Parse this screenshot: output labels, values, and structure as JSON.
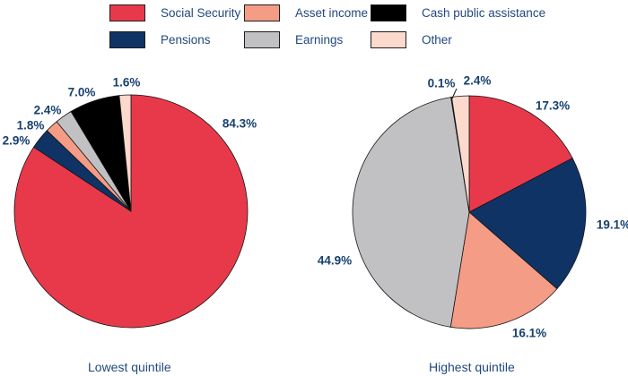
{
  "legend": {
    "items": [
      {
        "label": "Social Security",
        "color": "#e8394b"
      },
      {
        "label": "Asset income",
        "color": "#f49c86"
      },
      {
        "label": "Cash public assistance",
        "color": "#000000"
      },
      {
        "label": "Pensions",
        "color": "#0f3365"
      },
      {
        "label": "Earnings",
        "color": "#c1c1c3"
      },
      {
        "label": "Other",
        "color": "#fbd9cc"
      }
    ]
  },
  "chart_data": [
    {
      "type": "pie",
      "title": "Lowest quintile",
      "unit": "percent",
      "start_angle": "12 o'clock, clockwise",
      "categories": [
        "Social Security",
        "Pensions",
        "Asset income",
        "Earnings",
        "Cash public assistance",
        "Other"
      ],
      "values": [
        84.3,
        2.9,
        1.8,
        2.4,
        7.0,
        1.6
      ],
      "colors": [
        "#e8394b",
        "#0f3365",
        "#f49c86",
        "#c1c1c3",
        "#000000",
        "#fbd9cc"
      ]
    },
    {
      "type": "pie",
      "title": "Highest quintile",
      "unit": "percent",
      "start_angle": "12 o'clock, clockwise",
      "categories": [
        "Social Security",
        "Pensions",
        "Asset income",
        "Earnings",
        "Cash public assistance",
        "Other"
      ],
      "values": [
        17.3,
        19.1,
        16.1,
        44.9,
        0.1,
        2.4
      ],
      "colors": [
        "#e8394b",
        "#0f3365",
        "#f49c86",
        "#c1c1c3",
        "#000000",
        "#fbd9cc"
      ]
    }
  ],
  "colors": {
    "text": "#21497f",
    "label_text": "#17406f",
    "slice_stroke": "#151515",
    "background": "#ffffff"
  }
}
